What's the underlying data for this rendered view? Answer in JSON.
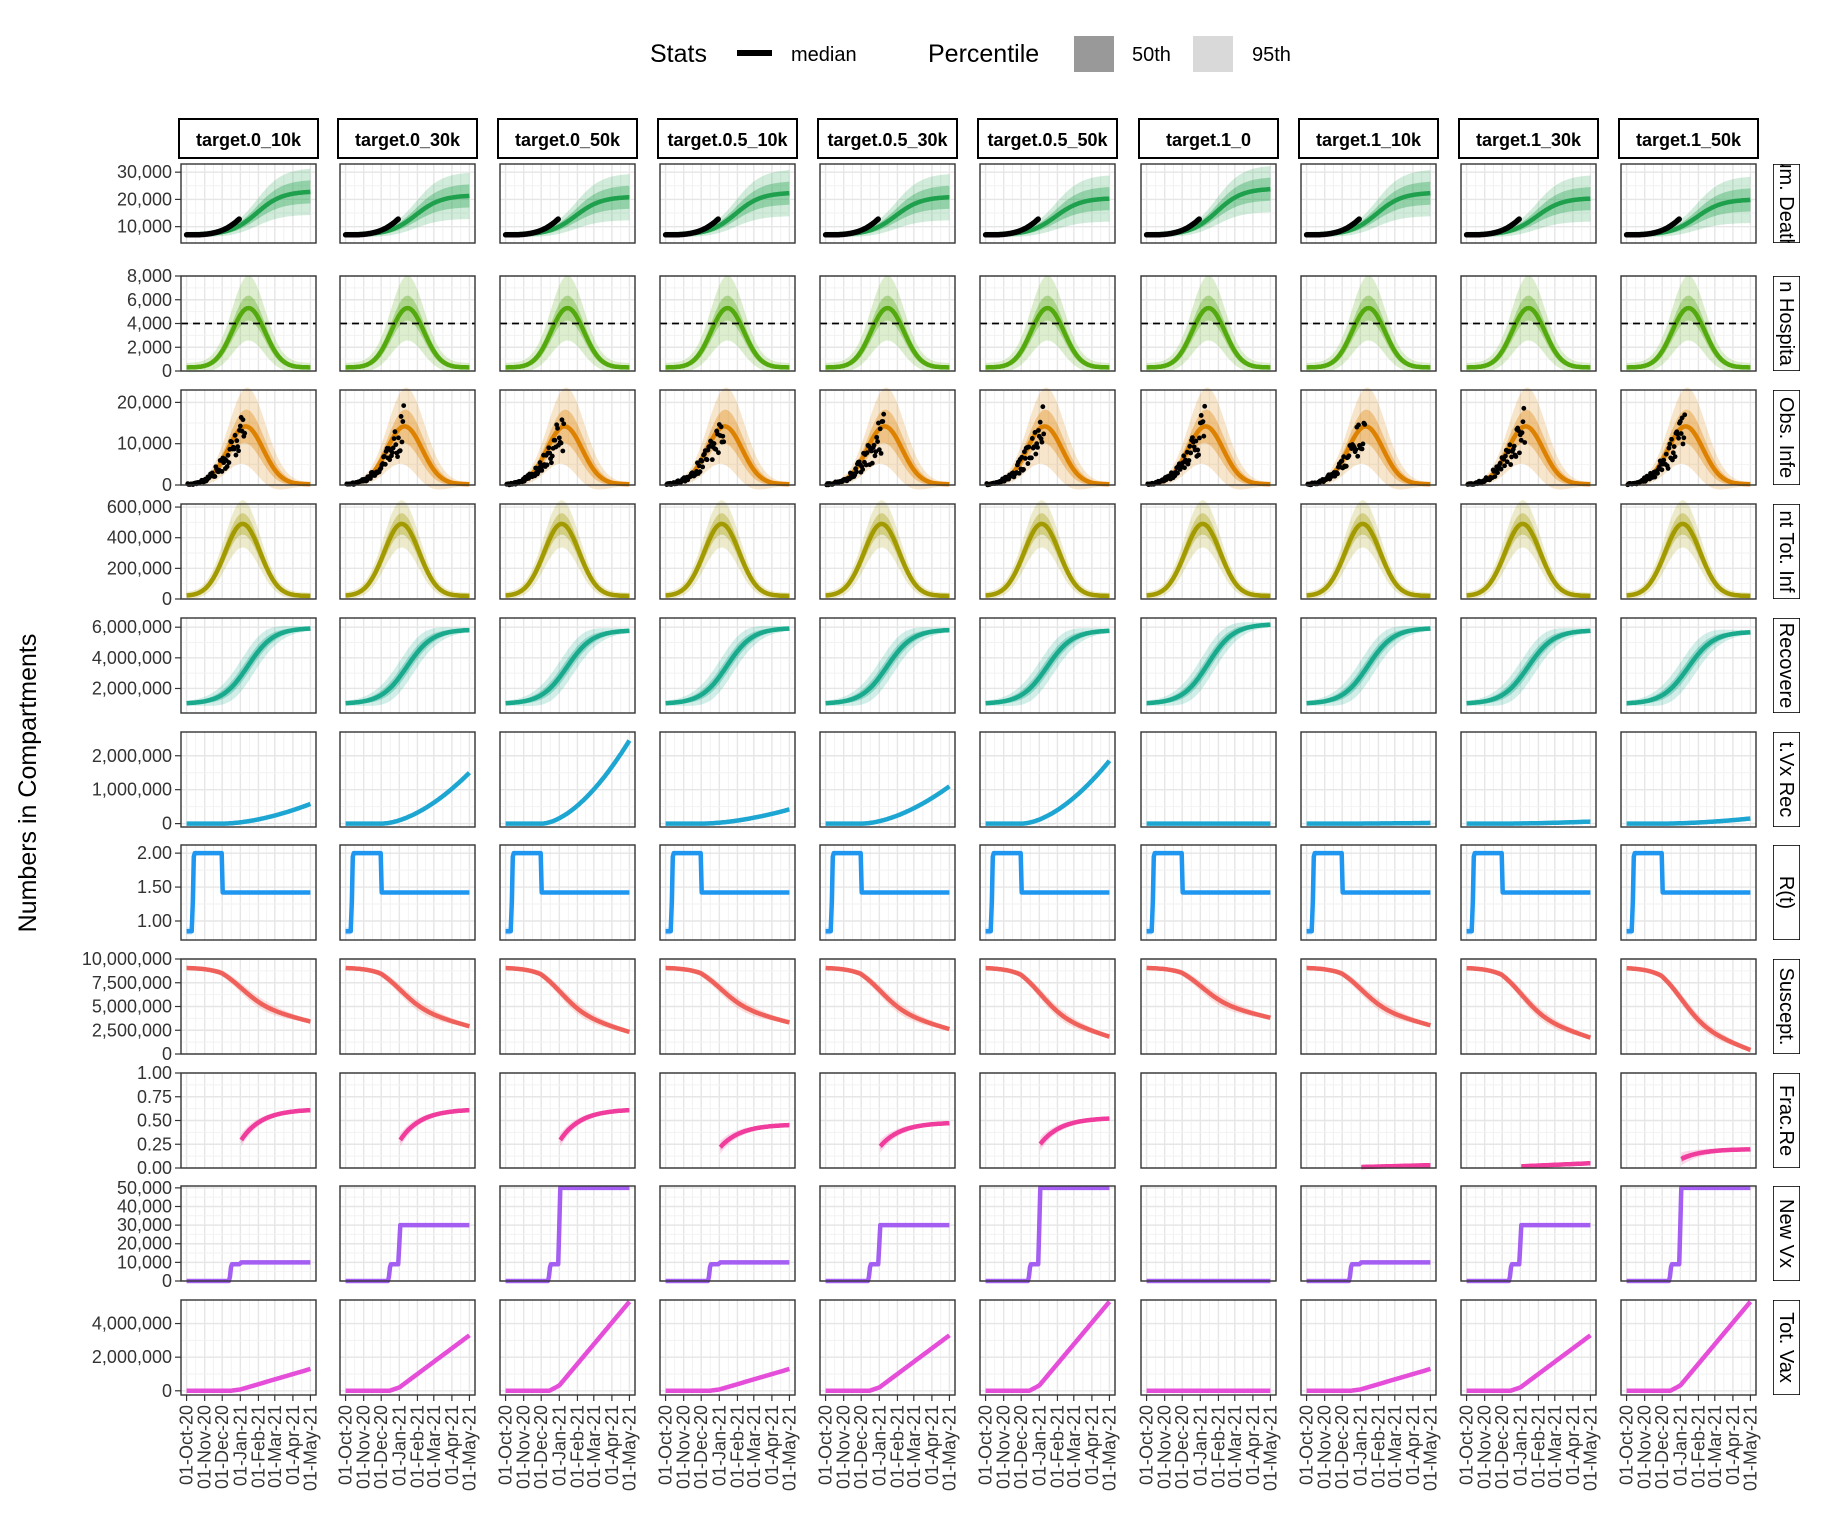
{
  "chart_data": {
    "type": "area",
    "ylabel": "Numbers in Compartments",
    "legend": {
      "placement": "top",
      "stats_title": "Stats",
      "stats_items": [
        "median"
      ],
      "percentile_title": "Percentile",
      "percentile_items": [
        "50th",
        "95th"
      ]
    },
    "x_ticks": [
      "01-Oct-20",
      "01-Nov-20",
      "01-Dec-20",
      "01-Jan-21",
      "01-Feb-21",
      "01-Mar-21",
      "01-Apr-21",
      "01-May-21"
    ],
    "x_range": [
      "2020-10-01",
      "2021-05-01"
    ],
    "columns": [
      "target.0_10k",
      "target.0_30k",
      "target.0_50k",
      "target.0.5_10k",
      "target.0.5_30k",
      "target.0.5_50k",
      "target.1_0",
      "target.1_10k",
      "target.1_30k",
      "target.1_50k"
    ],
    "rows": [
      {
        "label": "Cum. Deaths",
        "strip": "um. Death",
        "color": "#1fa04d",
        "ylim": [
          4000,
          33000
        ],
        "ticks": [
          10000,
          20000,
          30000
        ],
        "tick_labels": [
          "10,000",
          "20,000",
          "30,000"
        ]
      },
      {
        "label": "In Hospital",
        "strip": "n Hospita",
        "color": "#53a90d",
        "ylim": [
          0,
          8000
        ],
        "ticks": [
          0,
          2000,
          4000,
          6000,
          8000
        ],
        "tick_labels": [
          "0",
          "2,000",
          "4,000",
          "6,000",
          "8,000"
        ],
        "reference_line": 4000
      },
      {
        "label": "Obs. Infections",
        "strip": "Obs. Infe",
        "color": "#dd8200",
        "ylim": [
          0,
          23000
        ],
        "ticks": [
          0,
          10000,
          20000
        ],
        "tick_labels": [
          "0",
          "10,000",
          "20,000"
        ]
      },
      {
        "label": "Current Tot. Infections",
        "strip": "nt Tot. Inf",
        "color": "#a39a00",
        "ylim": [
          0,
          620000
        ],
        "ticks": [
          0,
          200000,
          400000,
          600000
        ],
        "tick_labels": [
          "0",
          "200,000",
          "400,000",
          "600,000"
        ]
      },
      {
        "label": "Recovered",
        "strip": "Recovere",
        "color": "#19a98c",
        "ylim": [
          400000,
          6600000
        ],
        "ticks": [
          2000000,
          4000000,
          6000000
        ],
        "tick_labels": [
          "2,000,000",
          "4,000,000",
          "6,000,000"
        ]
      },
      {
        "label": "Cum. Vx Recovered",
        "strip": "t.Vx Rec",
        "color": "#1ea6d2",
        "ylim": [
          -100000,
          2700000
        ],
        "ticks": [
          0,
          1000000,
          2000000
        ],
        "tick_labels": [
          "0",
          "1,000,000",
          "2,000,000"
        ]
      },
      {
        "label": "R(t)",
        "strip": "R(t)",
        "color": "#1f96f0",
        "ylim": [
          0.72,
          2.12
        ],
        "ticks": [
          1.0,
          1.5,
          2.0
        ],
        "tick_labels": [
          "1.00",
          "1.50",
          "2.00"
        ]
      },
      {
        "label": "Suscept.",
        "strip": "Suscept.",
        "color": "#f0605a",
        "ylim": [
          0,
          10000000
        ],
        "ticks": [
          0,
          2500000,
          5000000,
          7500000,
          10000000
        ],
        "tick_labels": [
          "0",
          "2,500,000",
          "5,000,000",
          "7,500,000",
          "10,000,000"
        ]
      },
      {
        "label": "Frac. Recovered",
        "strip": "Frac.Re",
        "color": "#f03c9c",
        "ylim": [
          0,
          1
        ],
        "ticks": [
          0,
          0.25,
          0.5,
          0.75,
          1.0
        ],
        "tick_labels": [
          "0.00",
          "0.25",
          "0.50",
          "0.75",
          "1.00"
        ]
      },
      {
        "label": "New Vx",
        "strip": "New Vx",
        "color": "#a45ff2",
        "ylim": [
          0,
          51000
        ],
        "ticks": [
          0,
          10000,
          20000,
          30000,
          40000,
          50000
        ],
        "tick_labels": [
          "0",
          "10,000",
          "20,000",
          "30,000",
          "40,000",
          "50,000"
        ]
      },
      {
        "label": "Tot. Vax",
        "strip": "Tot. Vax",
        "color": "#e54ed9",
        "ylim": [
          -250000,
          5400000
        ],
        "ticks": [
          0,
          2000000,
          4000000
        ],
        "tick_labels": [
          "0",
          "2,000,000",
          "4,000,000"
        ]
      }
    ],
    "scenario_params": {
      "vax_start": {
        "target.0_10k": "2021-01-01",
        "target.0_30k": "2021-01-01",
        "target.0_50k": "2021-01-01",
        "target.0.5_10k": "2021-01-01",
        "target.0.5_30k": "2021-01-01",
        "target.0.5_50k": "2021-01-01",
        "target.1_0": "",
        "target.1_10k": "2021-01-01",
        "target.1_30k": "2021-01-01",
        "target.1_50k": "2021-01-01"
      },
      "new_vx_level": {
        "target.0_10k": 10000,
        "target.0_30k": 30000,
        "target.0_50k": 50000,
        "target.0.5_10k": 10000,
        "target.0.5_30k": 30000,
        "target.0.5_50k": 50000,
        "target.1_0": 0,
        "target.1_10k": 10000,
        "target.1_30k": 30000,
        "target.1_50k": 50000
      },
      "tot_vax_end": {
        "target.0_10k": 1300000,
        "target.0_30k": 3300000,
        "target.0_50k": 5300000,
        "target.0.5_10k": 1300000,
        "target.0.5_30k": 3300000,
        "target.0.5_50k": 5300000,
        "target.1_0": 0,
        "target.1_10k": 1300000,
        "target.1_30k": 3300000,
        "target.1_50k": 5300000
      },
      "cum_vx_recovered_end": {
        "target.0_10k": 580000,
        "target.0_30k": 1500000,
        "target.0_50k": 2450000,
        "target.0.5_10k": 420000,
        "target.0.5_30k": 1100000,
        "target.0.5_50k": 1850000,
        "target.1_0": 0,
        "target.1_10k": 20000,
        "target.1_30k": 60000,
        "target.1_50k": 150000
      },
      "frac_recovered_end": {
        "target.0_10k": 0.62,
        "target.0_30k": 0.62,
        "target.0_50k": 0.62,
        "target.0.5_10k": 0.46,
        "target.0.5_30k": 0.48,
        "target.0.5_50k": 0.53,
        "target.1_0": null,
        "target.1_10k": 0.03,
        "target.1_30k": 0.05,
        "target.1_50k": 0.2
      },
      "suscept_end": {
        "target.0_10k": 3400000,
        "target.0_30k": 2900000,
        "target.0_50k": 2300000,
        "target.0.5_10k": 3300000,
        "target.0.5_30k": 2600000,
        "target.0.5_50k": 1800000,
        "target.1_0": 3800000,
        "target.1_10k": 3000000,
        "target.1_30k": 1700000,
        "target.1_50k": 400000
      },
      "recovered_end": {
        "target.0_10k": 5950000,
        "target.0_30k": 5850000,
        "target.0_50k": 5800000,
        "target.0.5_10k": 5950000,
        "target.0.5_30k": 5850000,
        "target.0.5_50k": 5800000,
        "target.1_0": 6200000,
        "target.1_10k": 5950000,
        "target.1_30k": 5800000,
        "target.1_50k": 5700000
      },
      "cum_deaths_end": {
        "target.0_10k": 23000,
        "target.0_30k": 21500,
        "target.0_50k": 21000,
        "target.0.5_10k": 22500,
        "target.0.5_30k": 21000,
        "target.0.5_50k": 20500,
        "target.1_0": 24000,
        "target.1_10k": 22500,
        "target.1_30k": 20500,
        "target.1_50k": 20000
      }
    },
    "series_shape": {
      "cum_deaths_start": 7000,
      "hospital_peak": 5000,
      "hospital_peak_date": "2021-01-15",
      "obs_infections_peak": 14000,
      "obs_infections_peak_date": "2021-01-10",
      "tot_infections_peak": 470000,
      "tot_infections_peak_date": "2021-01-05",
      "recovered_start": 1000000,
      "suscept_start": 9100000,
      "rt_levels": [
        0.85,
        2.0,
        1.42
      ],
      "rt_change_dates": [
        "2020-10-12",
        "2020-12-01"
      ],
      "new_vx_initial_step": 9000,
      "new_vx_initial_step_date": "2020-12-15"
    },
    "observed_data": {
      "cum_deaths_end": 13000,
      "cum_deaths_end_date": "2020-12-31",
      "obs_infections_max": 22000
    }
  }
}
